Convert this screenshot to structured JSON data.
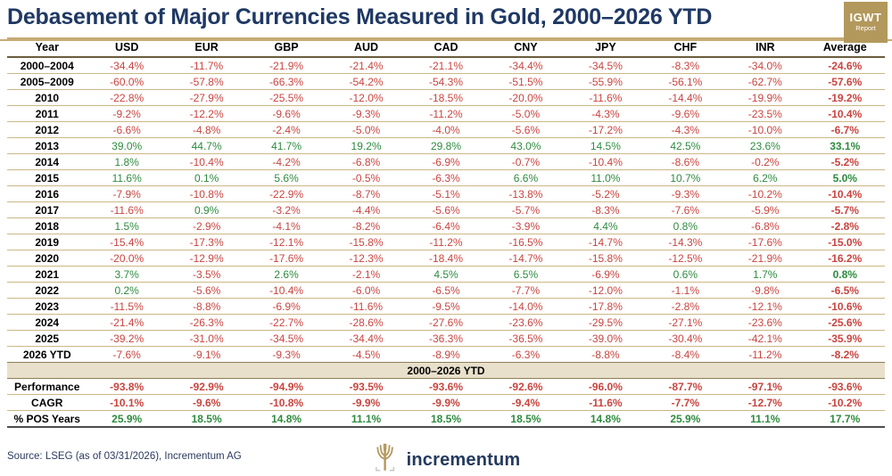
{
  "header": {
    "title": "Debasement of Major Currencies Measured in Gold, 2000–2026 YTD",
    "badge": {
      "line1": "IGWT",
      "line2": "Report"
    }
  },
  "chart_data": {
    "type": "table",
    "title": "Debasement of Major Currencies Measured in Gold, 2000–2026 YTD",
    "columns": [
      "Year",
      "USD",
      "EUR",
      "GBP",
      "AUD",
      "CAD",
      "CNY",
      "JPY",
      "CHF",
      "INR",
      "Average"
    ],
    "rows": [
      {
        "label": "2000–2004",
        "values": [
          "-34.4%",
          "-11.7%",
          "-21.9%",
          "-21.4%",
          "-21.1%",
          "-34.4%",
          "-34.5%",
          "-8.3%",
          "-34.0%"
        ],
        "average": "-24.6%"
      },
      {
        "label": "2005–2009",
        "values": [
          "-60.0%",
          "-57.8%",
          "-66.3%",
          "-54.2%",
          "-54.3%",
          "-51.5%",
          "-55.9%",
          "-56.1%",
          "-62.7%"
        ],
        "average": "-57.6%"
      },
      {
        "label": "2010",
        "values": [
          "-22.8%",
          "-27.9%",
          "-25.5%",
          "-12.0%",
          "-18.5%",
          "-20.0%",
          "-11.6%",
          "-14.4%",
          "-19.9%"
        ],
        "average": "-19.2%"
      },
      {
        "label": "2011",
        "values": [
          "-9.2%",
          "-12.2%",
          "-9.6%",
          "-9.3%",
          "-11.2%",
          "-5.0%",
          "-4.3%",
          "-9.6%",
          "-23.5%"
        ],
        "average": "-10.4%"
      },
      {
        "label": "2012",
        "values": [
          "-6.6%",
          "-4.8%",
          "-2.4%",
          "-5.0%",
          "-4.0%",
          "-5.6%",
          "-17.2%",
          "-4.3%",
          "-10.0%"
        ],
        "average": "-6.7%"
      },
      {
        "label": "2013",
        "values": [
          "39.0%",
          "44.7%",
          "41.7%",
          "19.2%",
          "29.8%",
          "43.0%",
          "14.5%",
          "42.5%",
          "23.6%"
        ],
        "average": "33.1%"
      },
      {
        "label": "2014",
        "values": [
          "1.8%",
          "-10.4%",
          "-4.2%",
          "-6.8%",
          "-6.9%",
          "-0.7%",
          "-10.4%",
          "-8.6%",
          "-0.2%"
        ],
        "average": "-5.2%"
      },
      {
        "label": "2015",
        "values": [
          "11.6%",
          "0.1%",
          "5.6%",
          "-0.5%",
          "-6.3%",
          "6.6%",
          "11.0%",
          "10.7%",
          "6.2%"
        ],
        "average": "5.0%"
      },
      {
        "label": "2016",
        "values": [
          "-7.9%",
          "-10.8%",
          "-22.9%",
          "-8.7%",
          "-5.1%",
          "-13.8%",
          "-5.2%",
          "-9.3%",
          "-10.2%"
        ],
        "average": "-10.4%"
      },
      {
        "label": "2017",
        "values": [
          "-11.6%",
          "0.9%",
          "-3.2%",
          "-4.4%",
          "-5.6%",
          "-5.7%",
          "-8.3%",
          "-7.6%",
          "-5.9%"
        ],
        "average": "-5.7%"
      },
      {
        "label": "2018",
        "values": [
          "1.5%",
          "-2.9%",
          "-4.1%",
          "-8.2%",
          "-6.4%",
          "-3.9%",
          "4.4%",
          "0.8%",
          "-6.8%"
        ],
        "average": "-2.8%"
      },
      {
        "label": "2019",
        "values": [
          "-15.4%",
          "-17.3%",
          "-12.1%",
          "-15.8%",
          "-11.2%",
          "-16.5%",
          "-14.7%",
          "-14.3%",
          "-17.6%"
        ],
        "average": "-15.0%"
      },
      {
        "label": "2020",
        "values": [
          "-20.0%",
          "-12.9%",
          "-17.6%",
          "-12.3%",
          "-18.4%",
          "-14.7%",
          "-15.8%",
          "-12.5%",
          "-21.9%"
        ],
        "average": "-16.2%"
      },
      {
        "label": "2021",
        "values": [
          "3.7%",
          "-3.5%",
          "2.6%",
          "-2.1%",
          "4.5%",
          "6.5%",
          "-6.9%",
          "0.6%",
          "1.7%"
        ],
        "average": "0.8%"
      },
      {
        "label": "2022",
        "values": [
          "0.2%",
          "-5.6%",
          "-10.4%",
          "-6.0%",
          "-6.5%",
          "-7.7%",
          "-12.0%",
          "-1.1%",
          "-9.8%"
        ],
        "average": "-6.5%"
      },
      {
        "label": "2023",
        "values": [
          "-11.5%",
          "-8.8%",
          "-6.9%",
          "-11.6%",
          "-9.5%",
          "-14.0%",
          "-17.8%",
          "-2.8%",
          "-12.1%"
        ],
        "average": "-10.6%"
      },
      {
        "label": "2024",
        "values": [
          "-21.4%",
          "-26.3%",
          "-22.7%",
          "-28.6%",
          "-27.6%",
          "-23.6%",
          "-29.5%",
          "-27.1%",
          "-23.6%"
        ],
        "average": "-25.6%"
      },
      {
        "label": "2025",
        "values": [
          "-39.2%",
          "-31.0%",
          "-34.5%",
          "-34.4%",
          "-36.3%",
          "-36.5%",
          "-39.0%",
          "-30.4%",
          "-42.1%"
        ],
        "average": "-35.9%"
      },
      {
        "label": "2026 YTD",
        "values": [
          "-7.6%",
          "-9.1%",
          "-9.3%",
          "-4.5%",
          "-8.9%",
          "-6.3%",
          "-8.8%",
          "-8.4%",
          "-11.2%"
        ],
        "average": "-8.2%"
      }
    ],
    "section_banner": "2000–2026 YTD",
    "summary_rows": [
      {
        "label": "Performance",
        "values": [
          "-93.8%",
          "-92.9%",
          "-94.9%",
          "-93.5%",
          "-93.6%",
          "-92.6%",
          "-96.0%",
          "-87.7%",
          "-97.1%"
        ],
        "average": "-93.6%"
      },
      {
        "label": "CAGR",
        "values": [
          "-10.1%",
          "-9.6%",
          "-10.8%",
          "-9.9%",
          "-9.9%",
          "-9.4%",
          "-11.6%",
          "-7.7%",
          "-12.7%"
        ],
        "average": "-10.2%"
      },
      {
        "label": "% POS Years",
        "values": [
          "25.9%",
          "18.5%",
          "14.8%",
          "11.1%",
          "18.5%",
          "18.5%",
          "14.8%",
          "25.9%",
          "11.1%"
        ],
        "average": "17.7%"
      }
    ],
    "legend_position": "none",
    "grid": "horizontal-rules"
  },
  "footer": {
    "source": "Source: LSEG (as of 03/31/2026), Incrementum AG",
    "logo_text": "incrementum"
  },
  "colors": {
    "positive": "#2e8b3e",
    "negative": "#c9453f",
    "accent_gold": "#c7ab74",
    "badge_gold": "#b3985c",
    "navy": "#1f3864",
    "banner_bg": "#e8e0cb"
  }
}
